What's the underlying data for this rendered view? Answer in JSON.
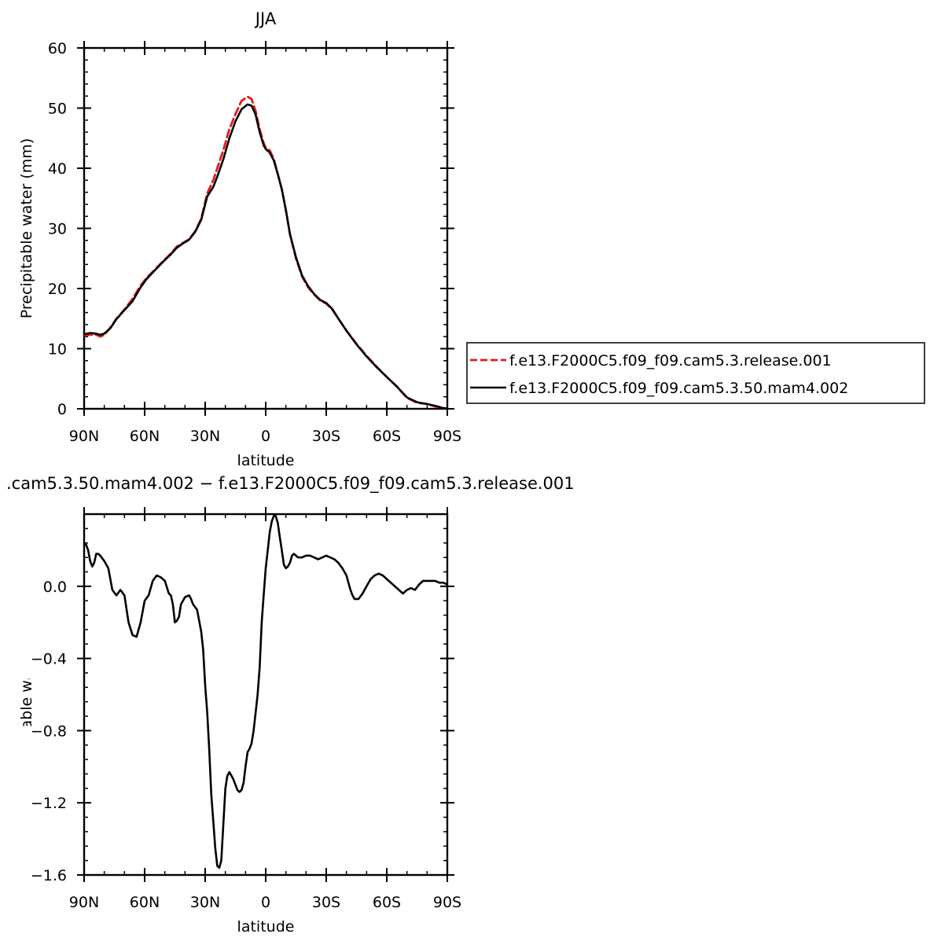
{
  "chart_data": [
    {
      "type": "line",
      "title": "JJA",
      "xlabel": "latitude",
      "ylabel": "Precipitable water (mm)",
      "xlim": [
        90,
        -90
      ],
      "ylim": [
        0,
        60
      ],
      "x_ticks": [
        90,
        60,
        30,
        0,
        -30,
        -60,
        -90
      ],
      "x_tick_labels": [
        "90N",
        "60N",
        "30N",
        "0",
        "30S",
        "60S",
        "90S"
      ],
      "y_ticks": [
        0,
        10,
        20,
        30,
        40,
        50,
        60
      ],
      "y_tick_labels": [
        "0",
        "10",
        "20",
        "30",
        "40",
        "50",
        "60"
      ],
      "legend_position": "right",
      "series": [
        {
          "name": "f.e13.F2000C5.f09_f09.cam5.3.release.001",
          "color": "#e41a1c",
          "dash": "dashed",
          "x": [
            90,
            87,
            84,
            82,
            80,
            77,
            74,
            70,
            66,
            62,
            59,
            55,
            51,
            47,
            44,
            41,
            38,
            35,
            32,
            29,
            26,
            24,
            21,
            18,
            15,
            12,
            9,
            7,
            5,
            3,
            1,
            0,
            -2,
            -4,
            -6,
            -8,
            -10,
            -12,
            -15,
            -18,
            -21,
            -24,
            -27,
            -30,
            -33,
            -36,
            -40,
            -45,
            -50,
            -55,
            -60,
            -65,
            -70,
            -75,
            -80,
            -85,
            -88,
            -90
          ],
          "y": [
            12.2,
            12.3,
            12.3,
            12.0,
            12.3,
            13.5,
            15.0,
            16.5,
            18.3,
            20.5,
            21.8,
            23.1,
            24.5,
            25.8,
            27.0,
            27.6,
            28.2,
            29.5,
            31.6,
            35.8,
            38.0,
            40.0,
            43.0,
            46.5,
            49.0,
            51.2,
            51.9,
            51.5,
            49.5,
            46.5,
            44.2,
            43.4,
            43.0,
            41.5,
            39.0,
            36.5,
            33.0,
            29.0,
            25.0,
            22.0,
            20.2,
            19.0,
            18.0,
            17.5,
            16.5,
            15.0,
            13.0,
            10.8,
            8.8,
            7.0,
            5.3,
            3.7,
            1.8,
            1.0,
            0.8,
            0.3,
            0.1,
            0.05
          ]
        },
        {
          "name": "f.e13.F2000C5.f09_f09.cam5.3.50.mam4.002",
          "color": "#000000",
          "dash": "solid",
          "x": [
            90,
            87,
            84,
            82,
            80,
            77,
            74,
            70,
            66,
            62,
            59,
            55,
            51,
            47,
            44,
            41,
            38,
            35,
            32,
            29,
            26,
            24,
            21,
            18,
            15,
            12,
            9,
            7,
            5,
            3,
            1,
            0,
            -2,
            -4,
            -6,
            -8,
            -10,
            -12,
            -15,
            -18,
            -21,
            -24,
            -27,
            -30,
            -33,
            -36,
            -40,
            -45,
            -50,
            -55,
            -60,
            -65,
            -70,
            -75,
            -80,
            -85,
            -88,
            -90
          ],
          "y": [
            12.4,
            12.6,
            12.5,
            12.3,
            12.5,
            13.4,
            14.9,
            16.4,
            17.9,
            20.2,
            21.6,
            23.0,
            24.4,
            25.7,
            26.8,
            27.5,
            28.1,
            29.4,
            31.4,
            35.3,
            36.9,
            38.6,
            41.5,
            45.0,
            47.8,
            49.8,
            50.6,
            50.4,
            48.9,
            46.0,
            43.8,
            43.2,
            42.6,
            41.3,
            39.0,
            36.5,
            33.0,
            29.1,
            25.2,
            22.2,
            20.4,
            19.1,
            18.1,
            17.6,
            16.6,
            15.0,
            13.0,
            10.7,
            8.7,
            6.9,
            5.3,
            3.7,
            1.9,
            1.1,
            0.8,
            0.4,
            0.1,
            0.06
          ]
        }
      ]
    },
    {
      "type": "line",
      "title": ".cam5.3.50.mam4.002 − f.e13.F2000C5.f09_f09.cam5.3.release.001",
      "xlabel": "latitude",
      "ylabel": "Precipitable water (mm)",
      "xlim": [
        90,
        -90
      ],
      "ylim": [
        -1.6,
        0.4
      ],
      "x_ticks": [
        90,
        60,
        30,
        0,
        -30,
        -60,
        -90
      ],
      "x_tick_labels": [
        "90N",
        "60N",
        "30N",
        "0",
        "30S",
        "60S",
        "90S"
      ],
      "y_ticks": [
        -1.6,
        -1.2,
        -0.8,
        -0.4,
        0.0
      ],
      "y_tick_labels": [
        "−1.6",
        "−1.2",
        "−0.8",
        "−0.4",
        "0.0"
      ],
      "series": [
        {
          "name": "",
          "color": "#000000",
          "dash": "solid",
          "x": [
            90,
            89,
            88,
            87,
            86,
            85,
            84,
            83,
            82,
            80,
            78,
            76,
            74,
            72,
            70,
            68,
            66,
            64,
            62,
            60,
            58,
            56,
            54,
            52,
            50,
            48,
            47,
            46,
            45,
            44,
            43,
            42,
            40,
            38,
            37,
            36,
            34,
            32,
            31,
            30,
            29,
            28,
            27,
            26,
            25,
            24,
            23,
            22,
            21,
            20,
            19,
            18,
            17,
            16,
            15,
            14,
            13,
            12,
            11,
            10,
            9,
            8,
            7,
            6,
            5,
            4,
            3,
            2,
            1,
            0,
            -1,
            -2,
            -3,
            -4,
            -5,
            -6,
            -7,
            -8,
            -9,
            -10,
            -11,
            -12,
            -13,
            -14,
            -15,
            -16,
            -17,
            -18,
            -20,
            -22,
            -24,
            -26,
            -28,
            -30,
            -32,
            -34,
            -36,
            -38,
            -40,
            -41,
            -42,
            -43,
            -44,
            -46,
            -48,
            -50,
            -52,
            -54,
            -56,
            -58,
            -60,
            -62,
            -64,
            -66,
            -68,
            -70,
            -72,
            -74,
            -76,
            -78,
            -80,
            -82,
            -84,
            -86,
            -88,
            -90
          ],
          "y": [
            0.24,
            0.23,
            0.2,
            0.14,
            0.11,
            0.13,
            0.18,
            0.18,
            0.17,
            0.14,
            0.1,
            -0.02,
            -0.05,
            -0.02,
            -0.05,
            -0.2,
            -0.27,
            -0.28,
            -0.2,
            -0.08,
            -0.05,
            0.03,
            0.06,
            0.05,
            0.03,
            -0.04,
            -0.05,
            -0.1,
            -0.2,
            -0.19,
            -0.17,
            -0.1,
            -0.06,
            -0.05,
            -0.07,
            -0.1,
            -0.13,
            -0.25,
            -0.35,
            -0.55,
            -0.7,
            -0.9,
            -1.15,
            -1.3,
            -1.45,
            -1.55,
            -1.56,
            -1.52,
            -1.32,
            -1.12,
            -1.05,
            -1.03,
            -1.05,
            -1.07,
            -1.1,
            -1.13,
            -1.14,
            -1.13,
            -1.09,
            -1.0,
            -0.92,
            -0.9,
            -0.87,
            -0.8,
            -0.7,
            -0.6,
            -0.45,
            -0.2,
            -0.05,
            0.1,
            0.2,
            0.3,
            0.36,
            0.39,
            0.39,
            0.35,
            0.27,
            0.2,
            0.12,
            0.1,
            0.11,
            0.13,
            0.17,
            0.18,
            0.17,
            0.16,
            0.16,
            0.16,
            0.17,
            0.17,
            0.16,
            0.15,
            0.16,
            0.17,
            0.16,
            0.15,
            0.13,
            0.1,
            0.06,
            0.02,
            -0.02,
            -0.05,
            -0.07,
            -0.07,
            -0.04,
            0.0,
            0.04,
            0.06,
            0.07,
            0.06,
            0.04,
            0.02,
            0.0,
            -0.02,
            -0.04,
            -0.02,
            -0.01,
            -0.02,
            0.01,
            0.03,
            0.03,
            0.03,
            0.03,
            0.02,
            0.02,
            0.01
          ]
        }
      ]
    }
  ]
}
